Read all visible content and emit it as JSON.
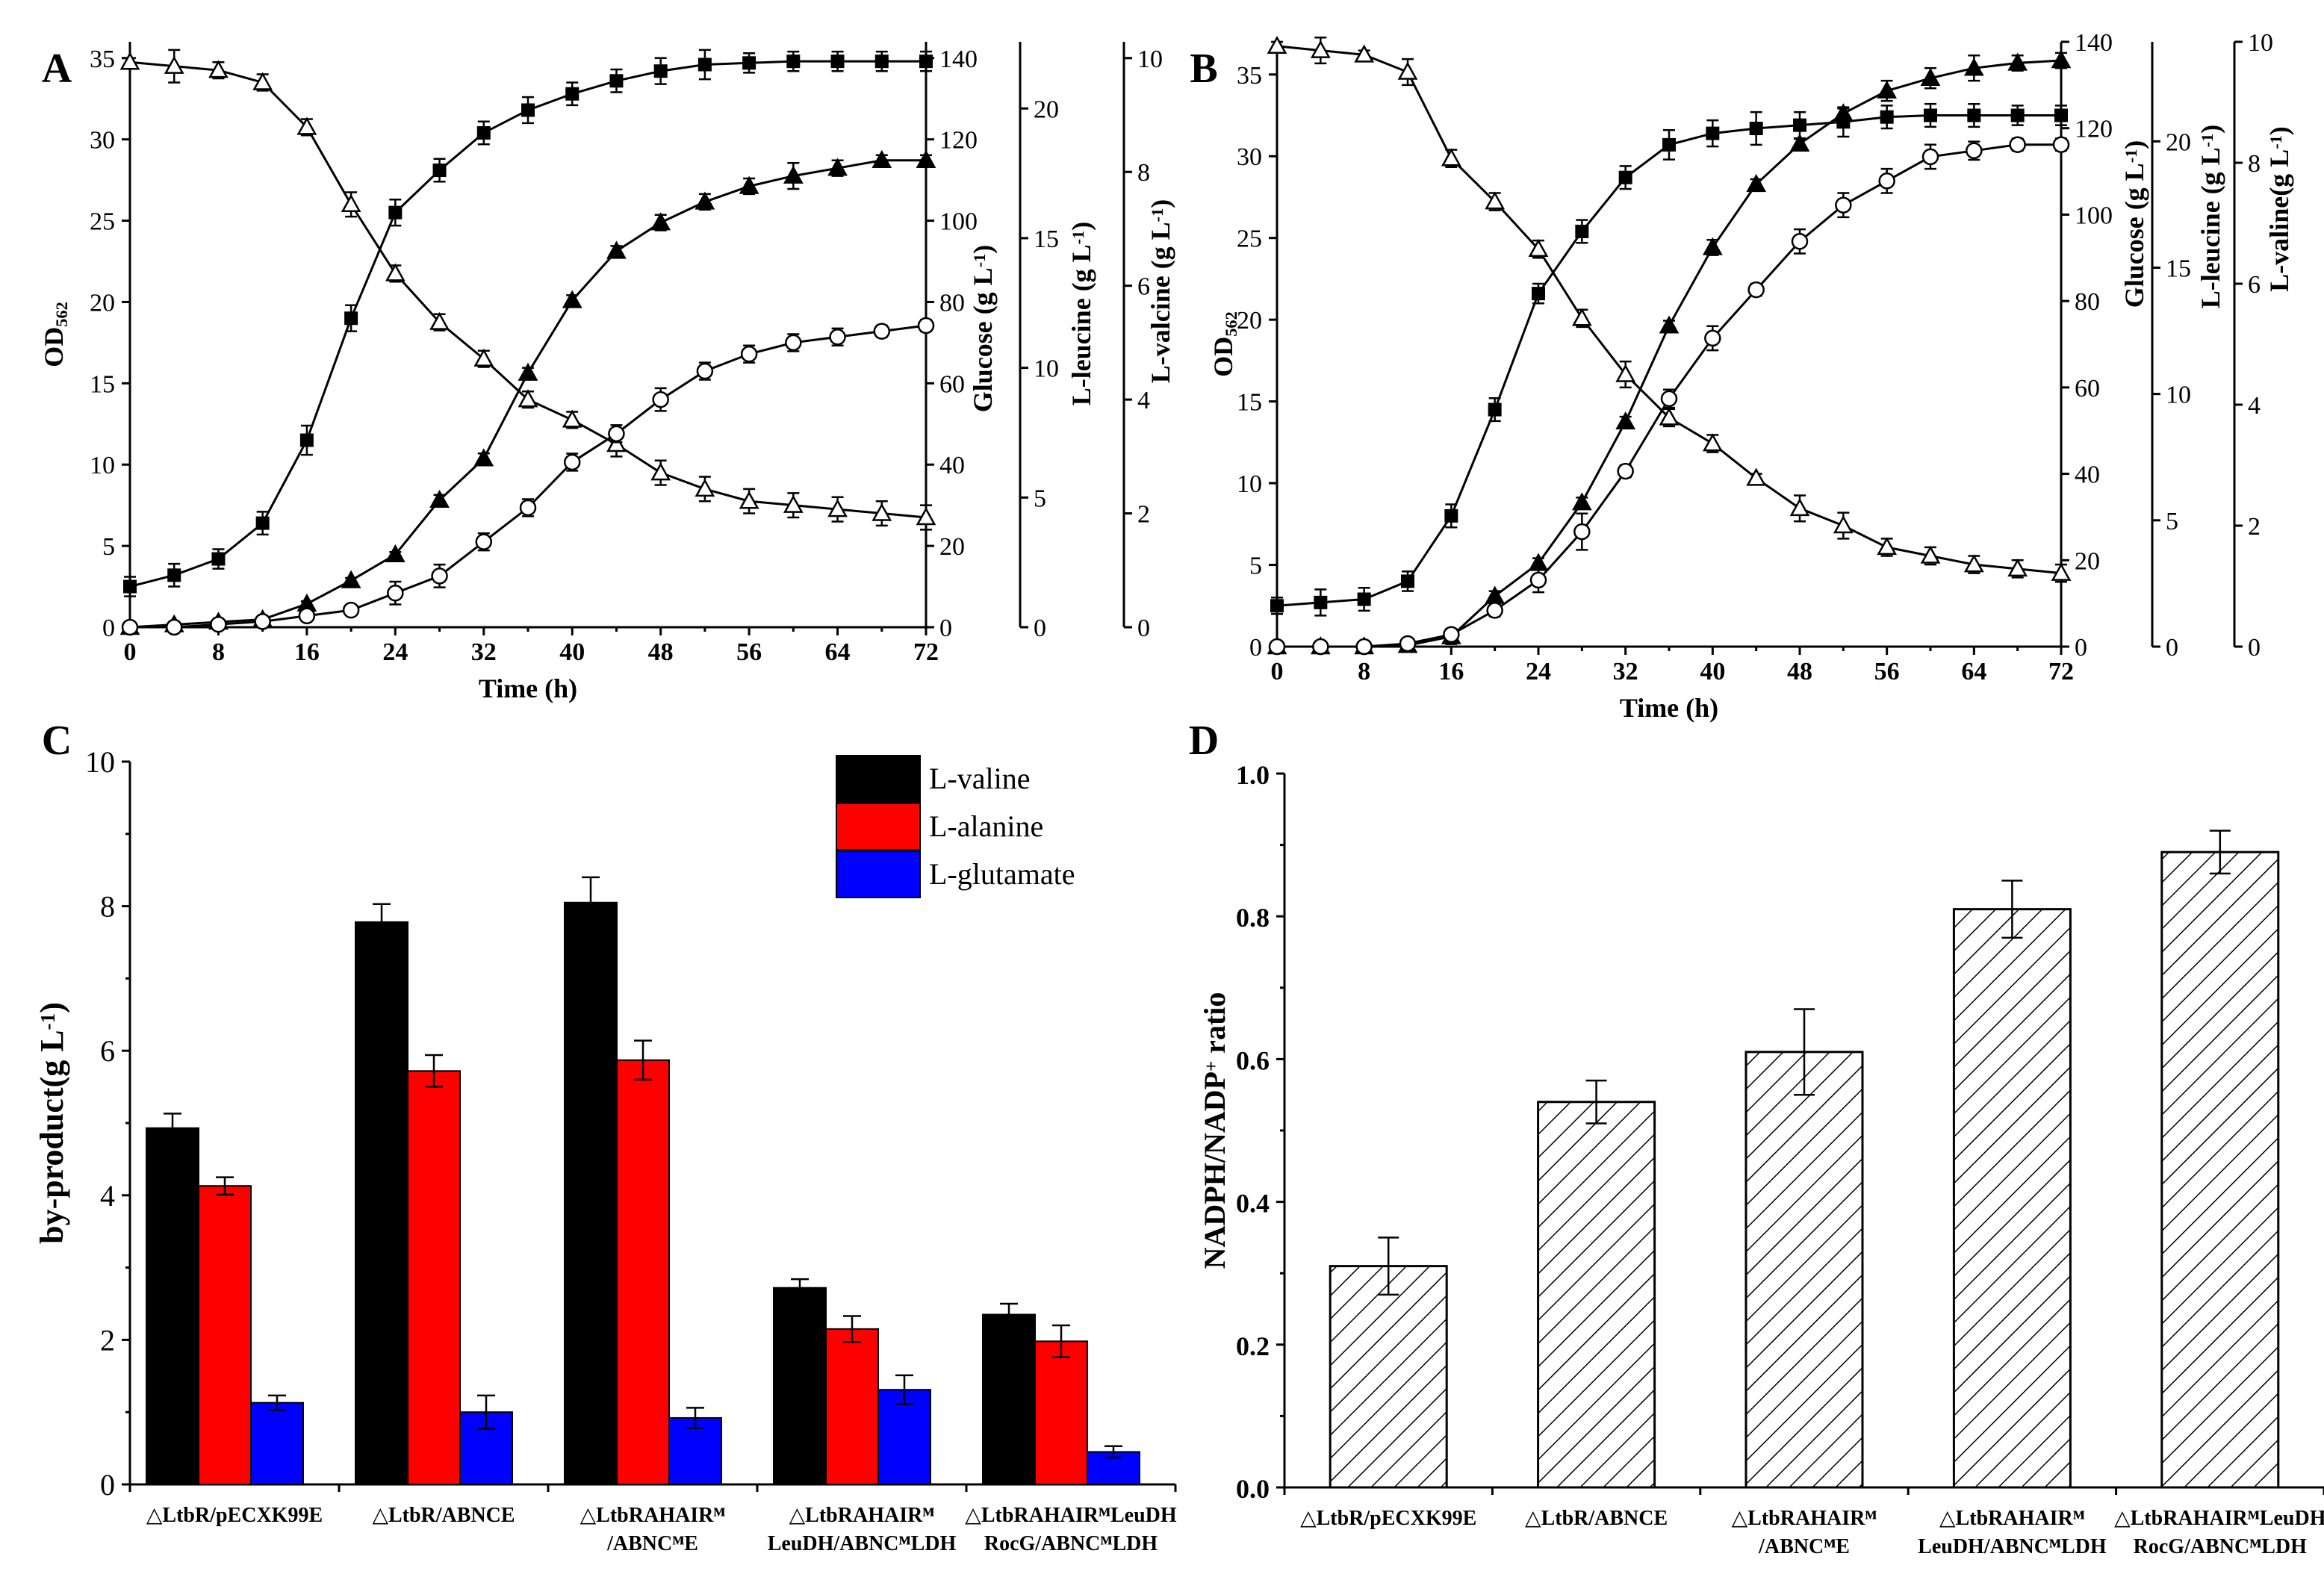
{
  "chart_data": [
    {
      "panel": "A",
      "type": "line",
      "x": [
        0,
        4,
        8,
        12,
        16,
        20,
        24,
        28,
        32,
        36,
        40,
        44,
        48,
        52,
        56,
        60,
        64,
        68,
        72
      ],
      "xlabel": "Time (h)",
      "xticks": [
        0,
        8,
        16,
        24,
        32,
        40,
        48,
        56,
        64,
        72
      ],
      "xlim": [
        0,
        72
      ],
      "series": [
        {
          "name": "OD562",
          "axis": "OD",
          "marker": "square",
          "values": [
            2.5,
            3.2,
            4.2,
            6.4,
            11.5,
            19.0,
            25.5,
            28.1,
            30.4,
            31.8,
            32.8,
            33.6,
            34.2,
            34.6,
            34.7,
            34.8,
            34.8,
            34.8,
            34.8
          ],
          "errors": [
            0.6,
            0.7,
            0.6,
            0.7,
            0.9,
            0.8,
            0.8,
            0.7,
            0.7,
            0.8,
            0.7,
            0.7,
            0.8,
            0.9,
            0.6,
            0.6,
            0.6,
            0.6,
            0.6
          ]
        },
        {
          "name": "Glucose",
          "axis": "glucose",
          "marker": "triangle-open",
          "values": [
            139,
            138,
            137,
            134,
            123,
            104,
            87,
            75,
            66,
            56,
            51,
            45,
            38,
            34,
            31,
            30,
            29,
            28,
            27
          ],
          "errors": [
            1,
            4,
            2,
            2,
            2,
            3,
            2,
            2,
            2,
            2,
            2,
            3,
            3,
            3,
            3,
            3,
            3,
            3,
            3
          ]
        },
        {
          "name": "L-leucine",
          "axis": "leucine",
          "marker": "triangle-filled",
          "values": [
            0,
            0.1,
            0.2,
            0.3,
            0.9,
            1.8,
            2.8,
            4.9,
            6.5,
            9.8,
            12.6,
            14.5,
            15.6,
            16.4,
            17.0,
            17.4,
            17.7,
            18.0,
            18.0
          ],
          "errors": [
            0,
            0.1,
            0.1,
            0.1,
            0.1,
            0.1,
            0.1,
            0.2,
            0.2,
            0.2,
            0.2,
            0.2,
            0.3,
            0.3,
            0.3,
            0.5,
            0.3,
            0.2,
            0.2
          ]
        },
        {
          "name": "L-valine",
          "axis": "valine",
          "marker": "circle-open",
          "values": [
            0,
            0,
            0.05,
            0.1,
            0.2,
            0.3,
            0.6,
            0.9,
            1.5,
            2.1,
            2.9,
            3.4,
            4.0,
            4.5,
            4.8,
            5.0,
            5.1,
            5.2,
            5.3
          ],
          "errors": [
            0,
            0,
            0,
            0,
            0.05,
            0.05,
            0.2,
            0.2,
            0.15,
            0.15,
            0.15,
            0.15,
            0.2,
            0.15,
            0.15,
            0.15,
            0.15,
            0.1,
            0.1
          ]
        }
      ],
      "axes": {
        "OD": {
          "label": "OD",
          "sub": "562",
          "ticks": [
            0,
            5,
            10,
            15,
            20,
            25,
            30,
            35
          ],
          "range": [
            0,
            36
          ]
        },
        "glucose": {
          "label": "Glucose (g L",
          "sup": "-1",
          "close": ")",
          "ticks": [
            0,
            20,
            40,
            60,
            80,
            100,
            120,
            140
          ],
          "range": [
            0,
            144
          ]
        },
        "leucine": {
          "label": "L-leucine (g L",
          "sup": "-1",
          "close": ")",
          "ticks": [
            0,
            5,
            10,
            15,
            20
          ],
          "range": [
            0,
            22.57
          ]
        },
        "valine": {
          "label": "L-valcine (g L",
          "sup": "-1",
          "close": ")",
          "ticks": [
            0,
            2,
            4,
            6,
            8,
            10
          ],
          "range": [
            0,
            10.286
          ]
        }
      }
    },
    {
      "panel": "B",
      "type": "line",
      "x": [
        0,
        4,
        8,
        12,
        16,
        20,
        24,
        28,
        32,
        36,
        40,
        44,
        48,
        52,
        56,
        60,
        64,
        68,
        72
      ],
      "xlabel": "Time (h)",
      "xticks": [
        0,
        8,
        16,
        24,
        32,
        40,
        48,
        56,
        64,
        72
      ],
      "xlim": [
        0,
        72
      ],
      "series": [
        {
          "name": "OD562",
          "axis": "OD",
          "marker": "square",
          "values": [
            2.5,
            2.7,
            2.9,
            4.0,
            8.0,
            14.5,
            21.6,
            25.4,
            28.7,
            30.7,
            31.4,
            31.7,
            31.9,
            32.1,
            32.4,
            32.5,
            32.5,
            32.5,
            32.5
          ],
          "errors": [
            0.5,
            0.8,
            0.7,
            0.6,
            0.7,
            0.7,
            0.6,
            0.7,
            0.7,
            0.9,
            0.8,
            1.0,
            0.8,
            0.9,
            0.7,
            0.7,
            0.7,
            0.6,
            0.6
          ]
        },
        {
          "name": "Glucose",
          "axis": "glucose",
          "marker": "triangle-open",
          "values": [
            139,
            138,
            137,
            133,
            113,
            103,
            92,
            76,
            63,
            53,
            47,
            39,
            32,
            28,
            23,
            21,
            19,
            18,
            17
          ],
          "errors": [
            1,
            3,
            1,
            3,
            2,
            2,
            2,
            2,
            3,
            2,
            2,
            1,
            3,
            3,
            2,
            2,
            2,
            2,
            2
          ]
        },
        {
          "name": "L-leucine",
          "axis": "leucine",
          "marker": "triangle-filled",
          "values": [
            0,
            0,
            0,
            0.05,
            0.4,
            2.0,
            3.3,
            5.7,
            8.9,
            12.7,
            15.8,
            18.3,
            19.9,
            21.1,
            22.0,
            22.5,
            22.9,
            23.1,
            23.2
          ],
          "errors": [
            0,
            0,
            0,
            0,
            0.3,
            0.2,
            0.2,
            0.2,
            0.2,
            0.2,
            0.3,
            0.2,
            0.2,
            0.2,
            0.4,
            0.4,
            0.5,
            0.3,
            0.3
          ]
        },
        {
          "name": "L-valine",
          "axis": "valine",
          "marker": "circle-open",
          "values": [
            0,
            0,
            0,
            0.05,
            0.2,
            0.6,
            1.1,
            1.9,
            2.9,
            4.1,
            5.1,
            5.9,
            6.7,
            7.3,
            7.7,
            8.1,
            8.2,
            8.3,
            8.3
          ],
          "errors": [
            0,
            0,
            0,
            0,
            0.05,
            0.1,
            0.2,
            0.3,
            0.1,
            0.15,
            0.2,
            0.1,
            0.2,
            0.2,
            0.2,
            0.2,
            0.15,
            0.1,
            0.1
          ]
        }
      ],
      "axes": {
        "OD": {
          "label": "OD",
          "sub": "562",
          "ticks": [
            0,
            5,
            10,
            15,
            20,
            25,
            30,
            35
          ],
          "range": [
            0,
            37
          ]
        },
        "glucose": {
          "label": "Glucose (g L",
          "sup": "-1",
          "close": ")",
          "ticks": [
            0,
            20,
            40,
            60,
            80,
            100,
            120,
            140
          ],
          "range": [
            0,
            140
          ]
        },
        "leucine": {
          "label": "L-leucine (g L",
          "sup": "-1",
          "close": ")",
          "ticks": [
            0,
            5,
            10,
            15,
            20
          ],
          "range": [
            0,
            23.94
          ]
        },
        "valine": {
          "label": "L-valine(g L",
          "sup": "-1",
          "close": ")",
          "ticks": [
            0,
            2,
            4,
            6,
            8,
            10
          ],
          "range": [
            0,
            10
          ]
        }
      }
    },
    {
      "panel": "C",
      "type": "bar",
      "categories": [
        "△LtbR/pECXK99E",
        "△LtbR/ABNCE",
        "△LtbRAHAIRᴹ /ABNCᴹE",
        "△LtbRAHAIRᴹ LeuDH/ABNCᴹLDH",
        "△LtbRAHAIRᴹLeuDH RocG/ABNCᴹLDH"
      ],
      "category_lines": [
        [
          "△LtbR/pECXK99E"
        ],
        [
          "△LtbR/ABNCE"
        ],
        [
          "△LtbRAHAIRᴹ",
          "/ABNCᴹE"
        ],
        [
          "△LtbRAHAIRᴹ",
          "LeuDH/ABNCᴹLDH"
        ],
        [
          "△LtbRAHAIRᴹLeuDH",
          "RocG/ABNCᴹLDH"
        ]
      ],
      "series": [
        {
          "name": "L-valine",
          "color": "#000000",
          "values": [
            4.93,
            7.78,
            8.05,
            2.72,
            2.35
          ],
          "errors": [
            0.2,
            0.25,
            0.35,
            0.12,
            0.15
          ]
        },
        {
          "name": "L-alanine",
          "color": "#ff0000",
          "values": [
            4.13,
            5.72,
            5.87,
            2.15,
            1.98
          ],
          "errors": [
            0.12,
            0.22,
            0.27,
            0.18,
            0.22
          ]
        },
        {
          "name": "L-glutamate",
          "color": "#0000ff",
          "values": [
            1.13,
            1.0,
            0.92,
            1.31,
            0.45
          ],
          "errors": [
            0.1,
            0.23,
            0.14,
            0.2,
            0.08
          ]
        }
      ],
      "ylabel": "by-product(g L",
      "ylabel_sup": "-1",
      "ylabel_close": ")",
      "yticks": [
        0,
        2,
        4,
        6,
        8,
        10
      ],
      "ylim": [
        0,
        10
      ],
      "legend": "top-right"
    },
    {
      "panel": "D",
      "type": "bar",
      "categories": [
        "△LtbR/pECXK99E",
        "△LtbR/ABNCE",
        "△LtbRAHAIRᴹ /ABNCᴹE",
        "△LtbRAHAIRᴹ LeuDH/ABNCᴹLDH",
        "△LtbRAHAIRᴹLeuDH RocG/ABNCᴹLDH"
      ],
      "category_lines": [
        [
          "△LtbR/pECXK99E"
        ],
        [
          "△LtbR/ABNCE"
        ],
        [
          "△LtbRAHAIRᴹ",
          "/ABNCᴹE"
        ],
        [
          "△LtbRAHAIRᴹ",
          "LeuDH/ABNCᴹLDH"
        ],
        [
          "△LtbRAHAIRᴹLeuDH",
          "RocG/ABNCᴹLDH"
        ]
      ],
      "values": [
        0.31,
        0.54,
        0.61,
        0.81,
        0.89
      ],
      "errors": [
        0.04,
        0.03,
        0.06,
        0.04,
        0.03
      ],
      "ylabel": "NADPH/NADP",
      "ylabel_sup": "+",
      "ylabel_close": " ratio",
      "yticks": [
        "0.0",
        "0.2",
        "0.4",
        "0.6",
        "0.8",
        "1.0"
      ],
      "ylim": [
        0,
        1.0
      ],
      "pattern": "diagonal-hatch"
    }
  ]
}
